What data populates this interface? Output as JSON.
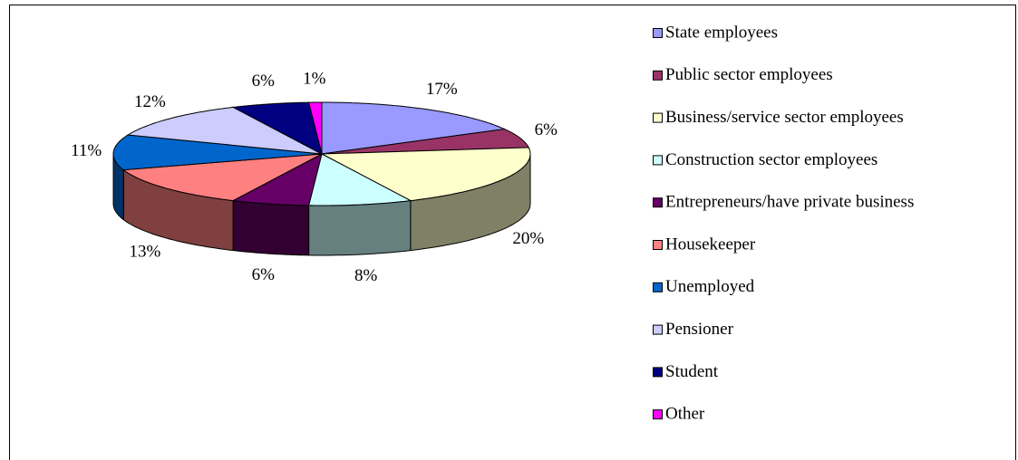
{
  "chart_data": {
    "type": "pie3d",
    "categories": [
      "State employees",
      "Public sector employees",
      "Business/service sector employees",
      "Construction sector employees",
      "Entrepreneurs/have private business",
      "Housekeeper",
      "Unemployed",
      "Pensioner",
      "Student",
      "Other"
    ],
    "values": [
      17,
      6,
      20,
      8,
      6,
      13,
      11,
      12,
      6,
      1
    ],
    "value_labels": [
      "17%",
      "6%",
      "20%",
      "8%",
      "6%",
      "13%",
      "11%",
      "12%",
      "6%",
      "1%"
    ],
    "colors": [
      "#9999ff",
      "#993366",
      "#ffffcc",
      "#ccffff",
      "#660066",
      "#ff8080",
      "#0066cc",
      "#ccccff",
      "#000080",
      "#ff00ff"
    ],
    "legend": "right"
  }
}
